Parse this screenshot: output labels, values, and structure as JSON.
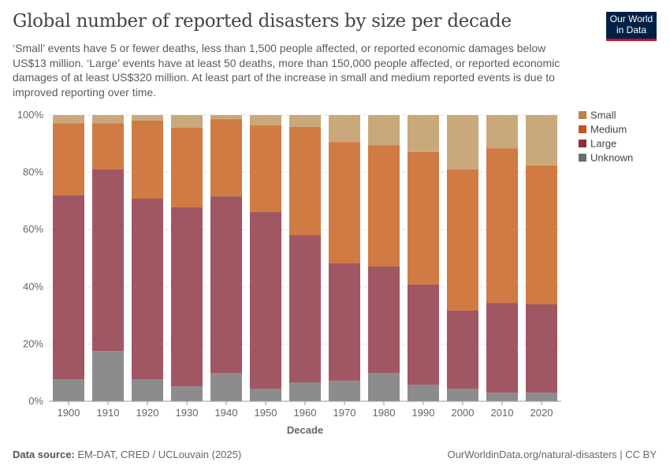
{
  "title": "Global number of reported disasters by size per decade",
  "subtitle": "‘Small’ events have 5 or fewer deaths, less than 1,500 people affected, or reported economic damages below US$13 million. ‘Large’ events have at least 50 deaths, more than 150,000 people affected, or reported economic damages of at least US$320 million. At least part of the increase in small and medium reported events is due to improved reporting over time.",
  "logo": {
    "line1": "Our World",
    "line2": "in Data"
  },
  "footer": {
    "source_label": "Data source:",
    "source": "EM-DAT, CRED / UCLouvain (2025)",
    "right": "OurWorldinData.org/natural-disasters | CC BY"
  },
  "chart_data": {
    "type": "bar",
    "stacked": true,
    "relative": true,
    "title": "Global number of reported disasters by size per decade",
    "xlabel": "Decade",
    "ylabel": "",
    "ylim": [
      0,
      100
    ],
    "yticks": [
      "0%",
      "20%",
      "40%",
      "60%",
      "80%",
      "100%"
    ],
    "categories": [
      "1900",
      "1910",
      "1920",
      "1930",
      "1940",
      "1950",
      "1960",
      "1970",
      "1980",
      "1990",
      "2000",
      "2010",
      "2020"
    ],
    "legend_position": "right",
    "series": [
      {
        "name": "Unknown",
        "color": "#6d6d6d",
        "bar_color": "#8c8c8c",
        "values": [
          7.7,
          17.6,
          7.7,
          5.2,
          9.9,
          4.4,
          6.6,
          7.2,
          9.9,
          5.8,
          4.4,
          3.0,
          3.0
        ]
      },
      {
        "name": "Large",
        "color": "#883039",
        "bar_color": "#a05663",
        "values": [
          64.2,
          63.4,
          63.1,
          62.6,
          61.7,
          61.7,
          51.5,
          41.0,
          37.2,
          35.0,
          27.3,
          31.4,
          30.9
        ]
      },
      {
        "name": "Medium",
        "color": "#c05917",
        "bar_color": "#d07b43",
        "values": [
          25.3,
          16.2,
          27.3,
          27.8,
          27.0,
          30.3,
          37.8,
          42.4,
          42.4,
          46.3,
          49.3,
          54.0,
          48.5
        ]
      },
      {
        "name": "Small",
        "color": "#b8834a",
        "bar_color": "#c9a87b",
        "values": [
          2.8,
          2.8,
          1.9,
          4.4,
          1.4,
          3.6,
          4.1,
          9.4,
          10.5,
          12.9,
          19.0,
          11.6,
          17.6
        ]
      }
    ],
    "legend_order": [
      "Small",
      "Medium",
      "Large",
      "Unknown"
    ]
  }
}
